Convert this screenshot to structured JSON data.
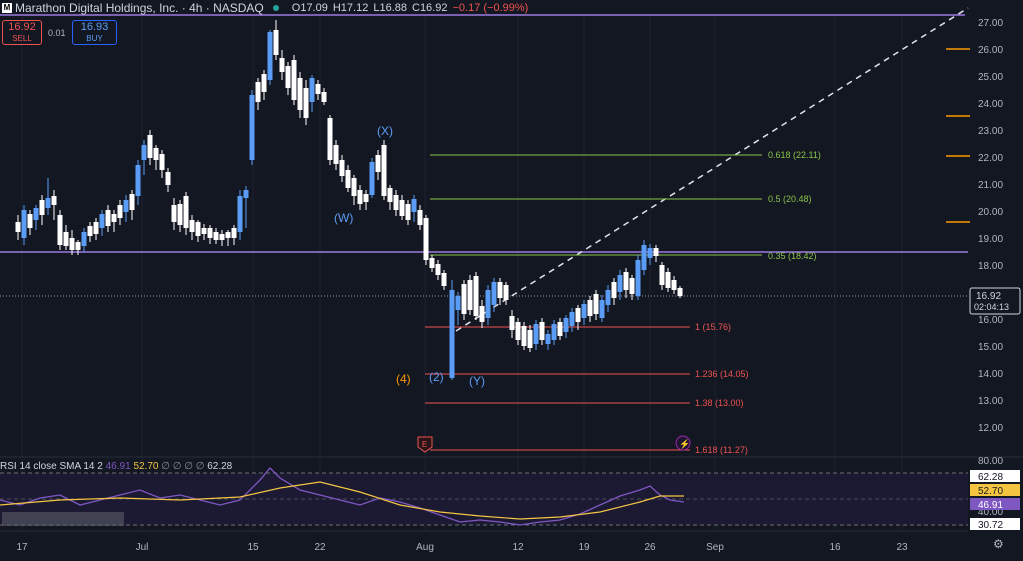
{
  "header": {
    "title": "Marathon Digital Holdings, Inc. · 4h · NASDAQ",
    "open": "O17.09",
    "high": "H17.12",
    "low": "L16.88",
    "close": "C16.92",
    "change": "−0.17 (−0.99%)"
  },
  "trade": {
    "sell_price": "16.92",
    "sell_label": "SELL",
    "spread": "0.01",
    "buy_price": "16.93",
    "buy_label": "BUY"
  },
  "price_axis": {
    "ticks": [
      "27.00",
      "26.00",
      "25.00",
      "24.00",
      "23.00",
      "22.00",
      "21.00",
      "20.00",
      "19.00",
      "18.00",
      "17.00",
      "16.00",
      "15.00",
      "14.00",
      "13.00",
      "12.00"
    ],
    "current_price": "16.92",
    "countdown": "02:04:13"
  },
  "time_axis": {
    "ticks": [
      "17",
      "Jul",
      "15",
      "22",
      "Aug",
      "12",
      "19",
      "26",
      "Sep",
      "16",
      "23"
    ]
  },
  "fib_levels": [
    {
      "label": "0.618 (22.11)",
      "price": 22.11,
      "color": "#8bc34a"
    },
    {
      "label": "0.5 (20.48)",
      "price": 20.48,
      "color": "#8bc34a"
    },
    {
      "label": "0.35 (18.42)",
      "price": 18.42,
      "color": "#8bc34a"
    },
    {
      "label": "1 (15.76)",
      "price": 15.76,
      "color": "#ef5350"
    },
    {
      "label": "1.236 (14.05)",
      "price": 14.05,
      "color": "#ef5350"
    },
    {
      "label": "1.38 (13.00)",
      "price": 13.0,
      "color": "#ef5350"
    },
    {
      "label": "1.618 (11.27)",
      "price": 11.27,
      "color": "#ef5350"
    }
  ],
  "wave_labels": [
    {
      "text": "(X)",
      "color": "#5b9cf6"
    },
    {
      "text": "(W)",
      "color": "#5b9cf6"
    },
    {
      "text": "(4)",
      "color": "#ff9800"
    },
    {
      "text": "(2)",
      "color": "#5b9cf6"
    },
    {
      "text": "(Y)",
      "color": "#5b9cf6"
    }
  ],
  "markers": {
    "e_marker": "E",
    "lightning": "⚡"
  },
  "rsi": {
    "label": "RSI 14 close SMA 14 2",
    "rsi_value": "46.91",
    "sma_value": "52.70",
    "placeholders": "∅ ∅ ∅ ∅",
    "extra_value": "62.28",
    "axis_ticks": [
      "80.00",
      "40.00"
    ],
    "badges": [
      {
        "text": "62.28",
        "bg": "#ffffff",
        "fg": "#131722"
      },
      {
        "text": "52.70",
        "bg": "#f5c542",
        "fg": "#131722"
      },
      {
        "text": "46.91",
        "bg": "#7e57c2",
        "fg": "#ffffff"
      },
      {
        "text": "30.72",
        "bg": "#ffffff",
        "fg": "#131722"
      }
    ]
  },
  "colors": {
    "background": "#131722",
    "up_candle": "#ffffff",
    "down_candle": "#ffffff",
    "accent_candle": "#5b9cf6",
    "resistance_line": "#9c7ce0",
    "fib_green": "#8bc34a",
    "fib_red": "#ef5350",
    "rsi_line": "#7e57c2",
    "rsi_sma": "#f5c542"
  }
}
